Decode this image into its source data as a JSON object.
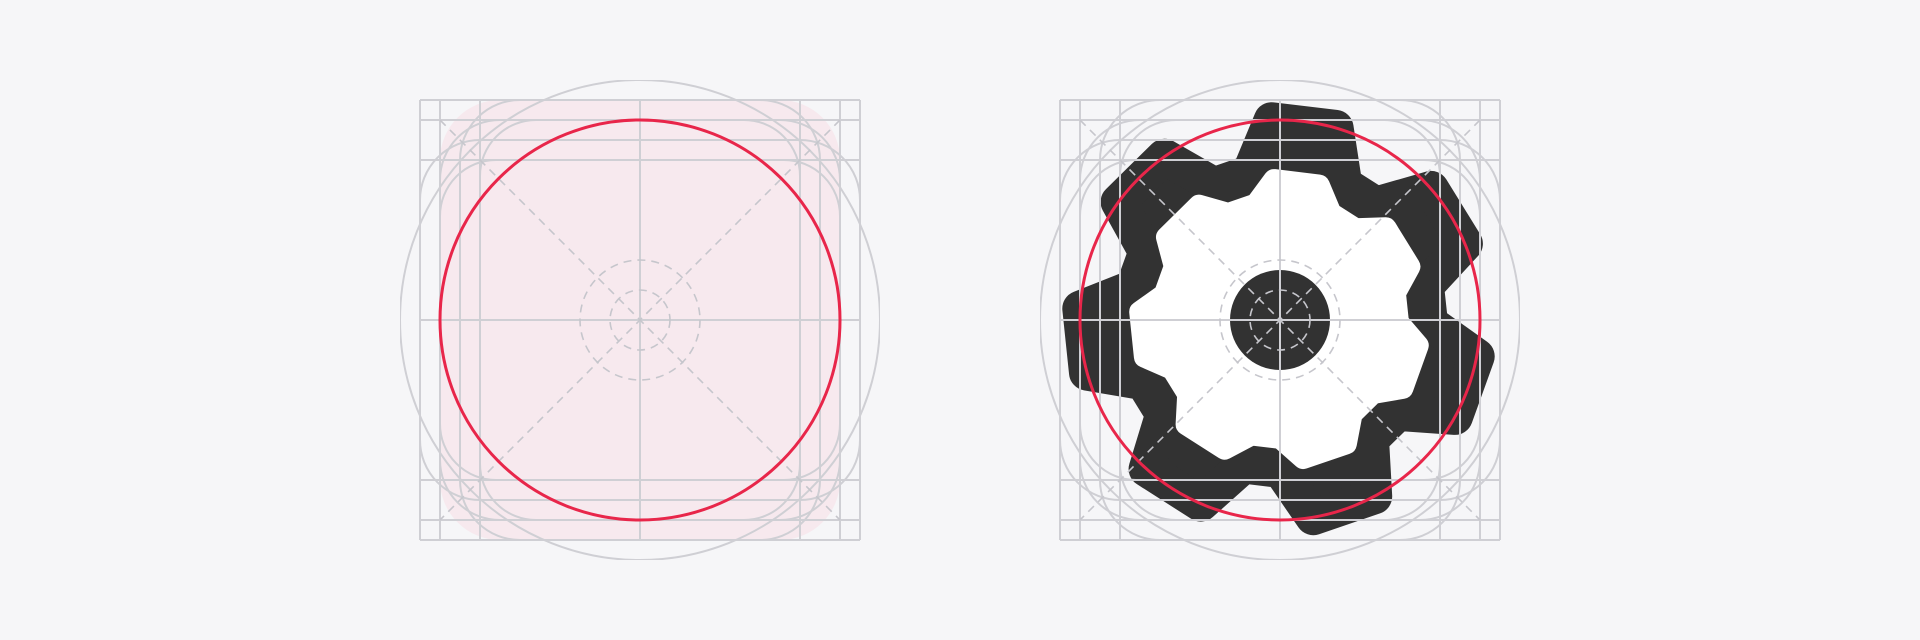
{
  "figure": {
    "panels": [
      {
        "name": "keyline-template",
        "shows_icon": false
      },
      {
        "name": "keyline-with-gear",
        "shows_icon": true
      }
    ],
    "colors": {
      "background": "#f6f6f8",
      "grid": "#cfcfd4",
      "grid_dashed": "#c6c6cc",
      "keyline_circle": "#e8264a",
      "highlight_fill": "#f7e9ee",
      "icon": "#323232",
      "icon_cutout": "#ffffff"
    },
    "icon": {
      "name": "settings-gear-icon",
      "teeth": 7
    }
  }
}
